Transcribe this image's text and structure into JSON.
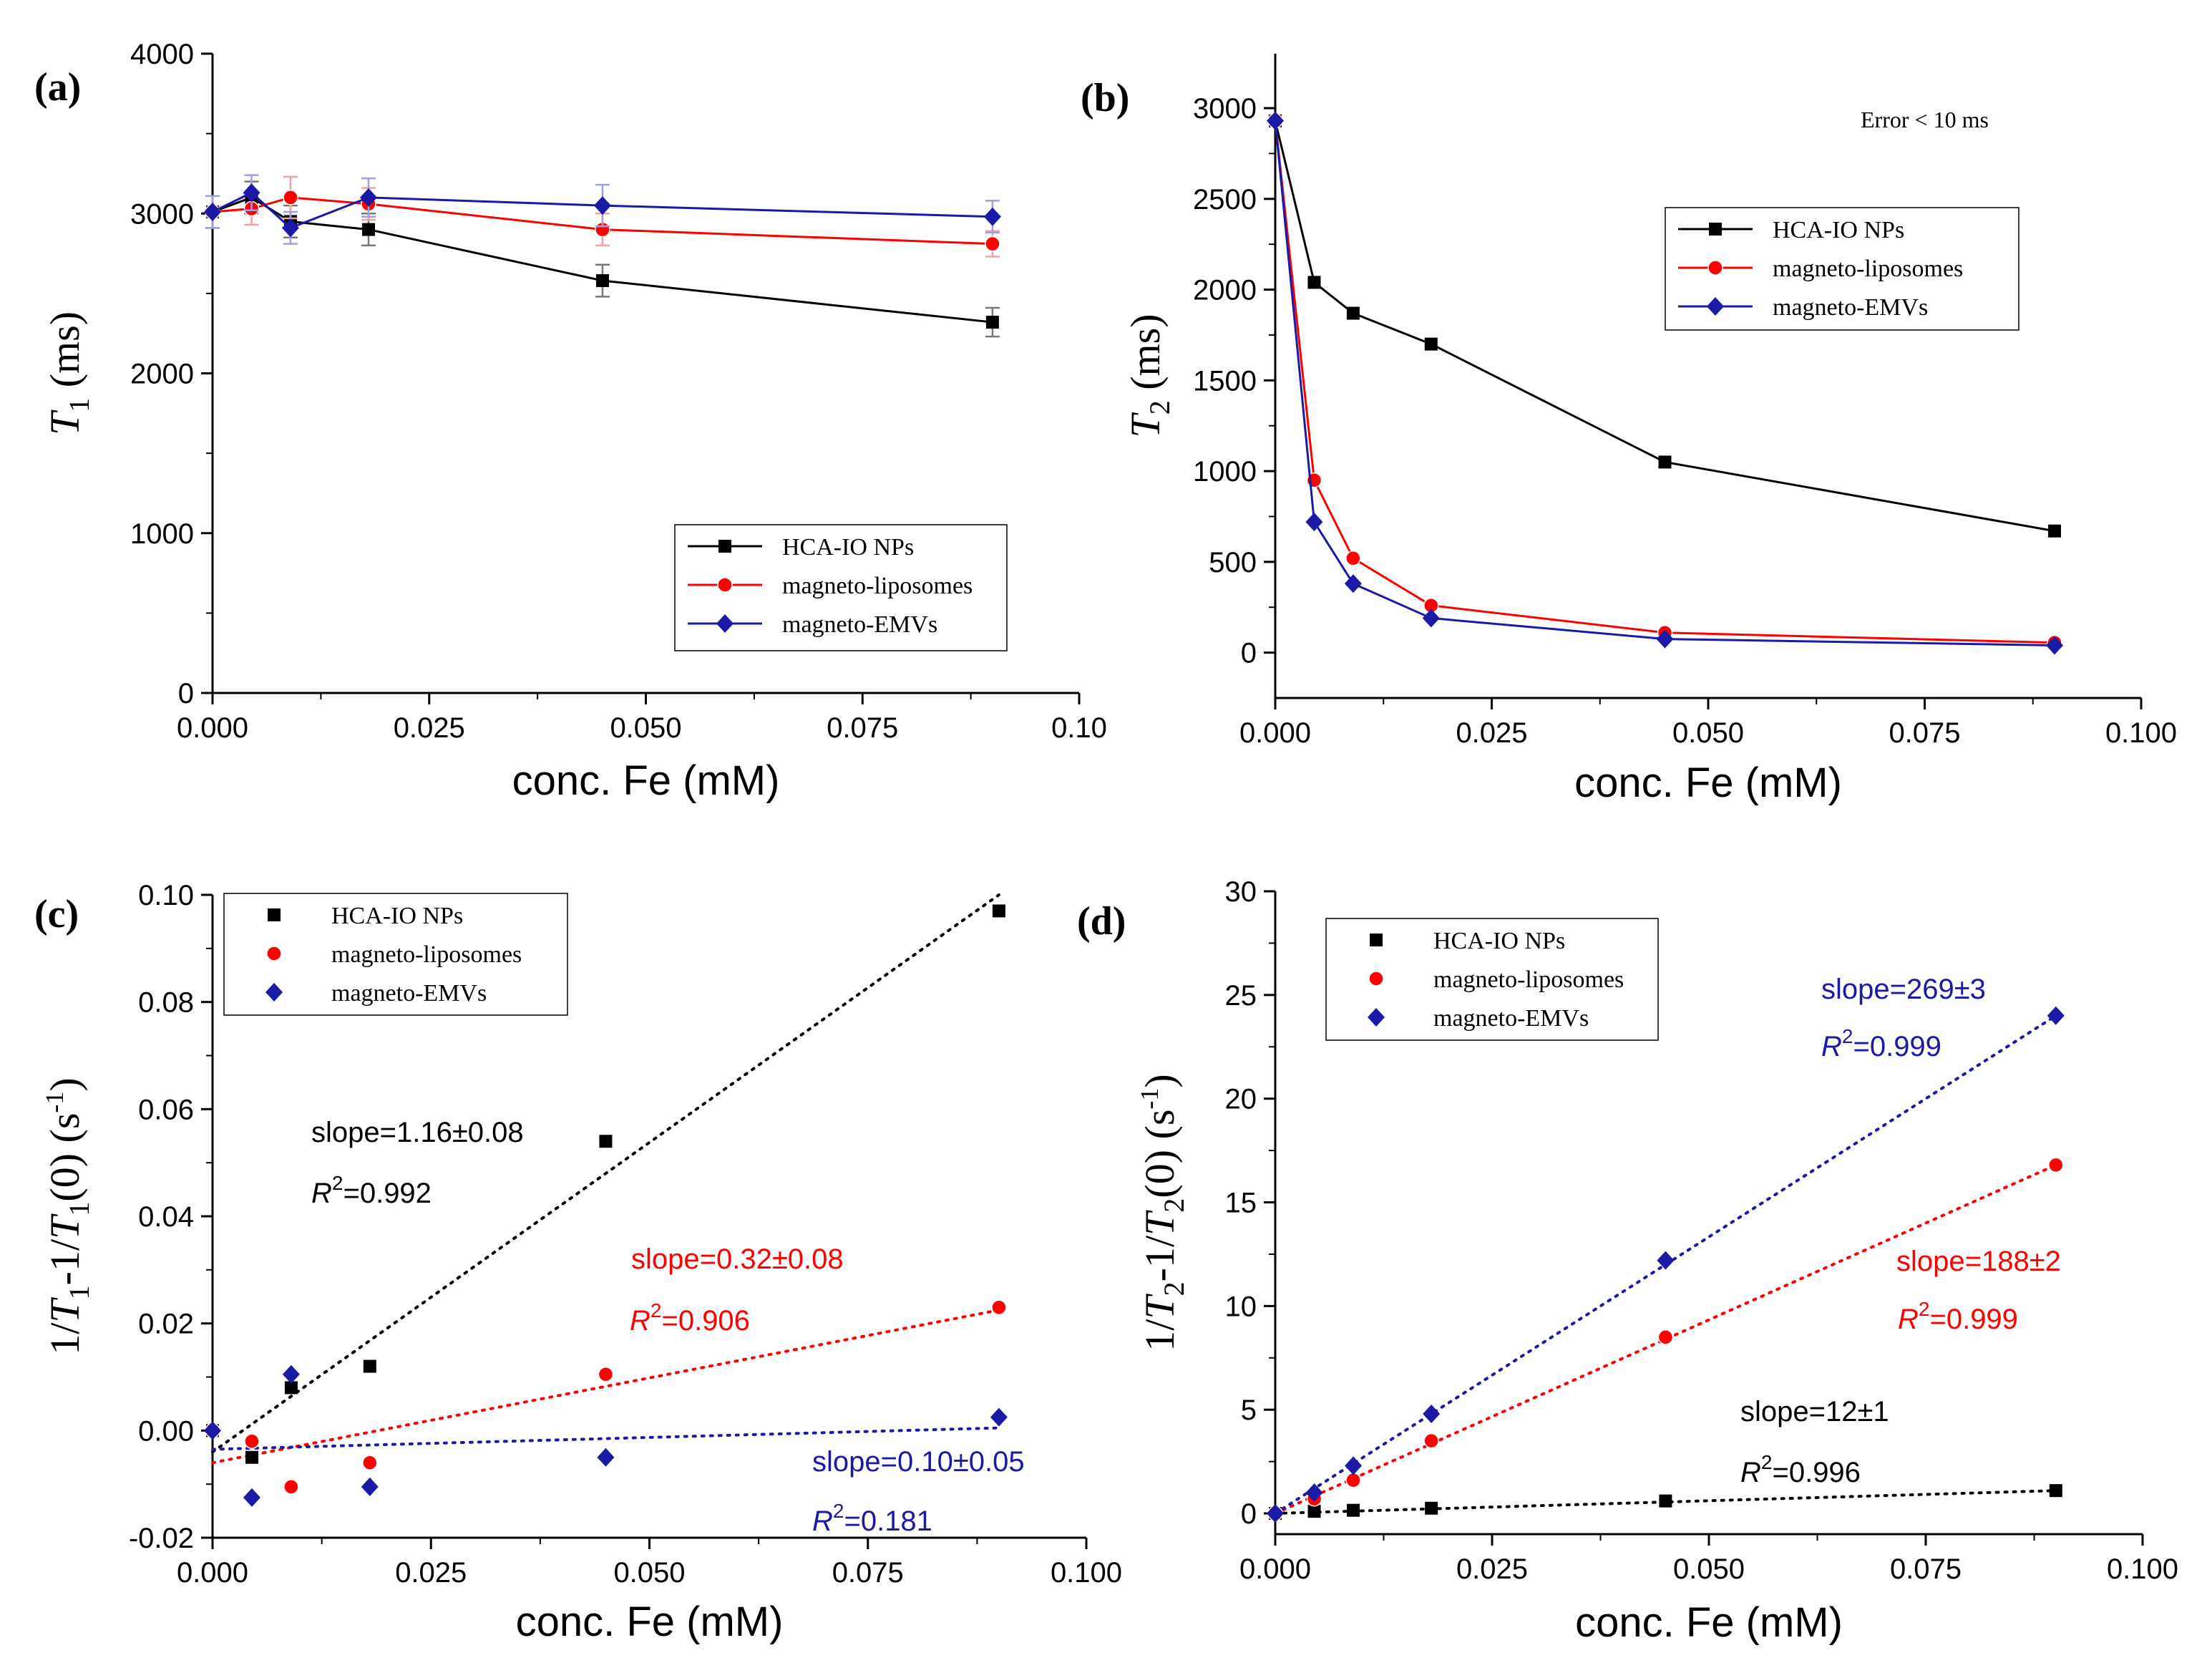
{
  "series_names": [
    "HCA-IO NPs",
    "magneto-liposomes",
    "magneto-EMVs"
  ],
  "colors": {
    "HCA-IO NPs": "#000000",
    "magneto-liposomes": "#ff0000",
    "magneto-EMVs": "#1a1aa6"
  },
  "chart_data": [
    {
      "panel": "(a)",
      "type": "line",
      "xlabel": "conc. Fe  (mM)",
      "ylabel_html": [
        "T",
        "1",
        " (ms)"
      ],
      "xlim": [
        0,
        0.1
      ],
      "ylim": [
        0,
        4000
      ],
      "xticks": [
        "0.000",
        "0.025",
        "0.050",
        "0.075",
        "0.10"
      ],
      "yticks": [
        "0",
        "1000",
        "2000",
        "3000",
        "4000"
      ],
      "x": [
        0,
        0.0045,
        0.009,
        0.018,
        0.045,
        0.09
      ],
      "series": [
        {
          "name": "HCA-IO NPs",
          "values": [
            3010,
            3100,
            2950,
            2900,
            2580,
            2320
          ],
          "errors": [
            100,
            100,
            100,
            100,
            100,
            90
          ]
        },
        {
          "name": "magneto-liposomes",
          "values": [
            3010,
            3030,
            3100,
            3060,
            2900,
            2810
          ],
          "errors": [
            100,
            100,
            130,
            100,
            100,
            80
          ]
        },
        {
          "name": "magneto-EMVs",
          "values": [
            3010,
            3130,
            2910,
            3100,
            3050,
            2980
          ],
          "errors": [
            100,
            110,
            100,
            120,
            130,
            100
          ]
        }
      ],
      "legend": "bottom-right"
    },
    {
      "panel": "(b)",
      "type": "line",
      "xlabel": "conc. Fe  (mM)",
      "ylabel_html": [
        "T",
        "2",
        " (ms)"
      ],
      "xlim": [
        0,
        0.1
      ],
      "ylim": [
        -250,
        3300
      ],
      "xticks": [
        "0.000",
        "0.025",
        "0.050",
        "0.075",
        "0.100"
      ],
      "yticks": [
        "0",
        "500",
        "1000",
        "1500",
        "2000",
        "2500",
        "3000"
      ],
      "annotation": "Error < 10 ms",
      "x": [
        0,
        0.0045,
        0.009,
        0.018,
        0.045,
        0.09
      ],
      "series": [
        {
          "name": "HCA-IO NPs",
          "values": [
            2930,
            2040,
            1870,
            1700,
            1050,
            670
          ]
        },
        {
          "name": "magneto-liposomes",
          "values": [
            2930,
            950,
            520,
            260,
            110,
            55
          ]
        },
        {
          "name": "magneto-EMVs",
          "values": [
            2930,
            720,
            380,
            190,
            75,
            40
          ]
        }
      ],
      "legend": "top-center"
    },
    {
      "panel": "(c)",
      "type": "scatter",
      "xlabel": "conc. Fe (mM)",
      "ylabel_parts": [
        "1/",
        "T",
        "1",
        "-1/",
        "T",
        "1",
        "(0)   (s",
        "-1",
        ")"
      ],
      "xlim": [
        0,
        0.1
      ],
      "ylim": [
        -0.02,
        0.1
      ],
      "xticks": [
        "0.000",
        "0.025",
        "0.050",
        "0.075",
        "0.100"
      ],
      "yticks": [
        "-0.02",
        "0.00",
        "0.02",
        "0.04",
        "0.06",
        "0.08",
        "0.10"
      ],
      "x": [
        0,
        0.0045,
        0.009,
        0.018,
        0.045,
        0.09
      ],
      "series": [
        {
          "name": "HCA-IO NPs",
          "values": [
            0,
            -0.005,
            0.008,
            0.012,
            0.054,
            0.097
          ],
          "fit": [
            -0.004,
            0.1
          ]
        },
        {
          "name": "magneto-liposomes",
          "values": [
            0,
            -0.002,
            -0.0105,
            -0.006,
            0.0105,
            0.023
          ],
          "fit": [
            -0.006,
            0.0225
          ]
        },
        {
          "name": "magneto-EMVs",
          "values": [
            0,
            -0.0125,
            0.0105,
            -0.0105,
            -0.005,
            0.0025
          ],
          "fit": [
            -0.0035,
            0.0005
          ]
        }
      ],
      "annotations": [
        {
          "series": "HCA-IO NPs",
          "slope": "slope=1.16±0.08",
          "r2": "=0.992"
        },
        {
          "series": "magneto-liposomes",
          "slope": "slope=0.32±0.08",
          "r2": "=0.906"
        },
        {
          "series": "magneto-EMVs",
          "slope": "slope=0.10±0.05",
          "r2": "=0.181"
        }
      ],
      "legend": "top-left"
    },
    {
      "panel": "(d)",
      "type": "scatter",
      "xlabel": "conc. Fe (mM)",
      "ylabel_parts": [
        "1/",
        "T",
        "2",
        "-1/",
        "T",
        "2",
        "(0)   (s",
        "-1",
        ")"
      ],
      "xlim": [
        0,
        0.1
      ],
      "ylim": [
        -1,
        30
      ],
      "xticks": [
        "0.000",
        "0.025",
        "0.050",
        "0.075",
        "0.100"
      ],
      "yticks": [
        "0",
        "5",
        "10",
        "15",
        "20",
        "25",
        "30"
      ],
      "x": [
        0,
        0.0045,
        0.009,
        0.018,
        0.045,
        0.09
      ],
      "series": [
        {
          "name": "HCA-IO NPs",
          "values": [
            0,
            0.1,
            0.15,
            0.25,
            0.6,
            1.1
          ],
          "fit": [
            0,
            1.1
          ]
        },
        {
          "name": "magneto-liposomes",
          "values": [
            0,
            0.7,
            1.6,
            3.5,
            8.5,
            16.8
          ],
          "fit": [
            0,
            16.8
          ]
        },
        {
          "name": "magneto-EMVs",
          "values": [
            0,
            1.0,
            2.3,
            4.8,
            12.2,
            24.0
          ],
          "fit": [
            0,
            24.0
          ]
        }
      ],
      "annotations": [
        {
          "series": "magneto-EMVs",
          "slope": "slope=269±3",
          "r2": "=0.999"
        },
        {
          "series": "magneto-liposomes",
          "slope": "slope=188±2",
          "r2": "=0.999"
        },
        {
          "series": "HCA-IO NPs",
          "slope": "slope=12±1",
          "r2": "=0.996"
        }
      ],
      "legend": "top-left"
    }
  ]
}
